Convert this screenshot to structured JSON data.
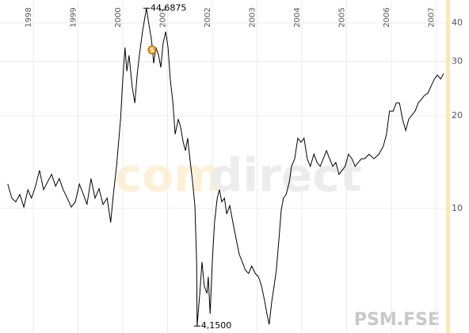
{
  "chart_data": {
    "type": "line",
    "symbol": "PSM.FSE",
    "watermark": {
      "left": "com",
      "right": "direct"
    },
    "event_label": "S",
    "annotations": {
      "max": "44,6875",
      "min": "4,1500"
    },
    "color": "#000000",
    "log_scale": true,
    "grid": true,
    "xlim": [
      1997.257,
      2007.221
    ],
    "xticks": [
      1998,
      1999,
      2000,
      2001,
      2002,
      2003,
      2004,
      2005,
      2006,
      2007
    ],
    "ylim": [
      3.94,
      47.5
    ],
    "yticks": [
      10,
      20,
      30,
      40
    ],
    "x": [
      1997.43,
      1997.52,
      1997.61,
      1997.7,
      1997.79,
      1997.88,
      1997.96,
      1998.05,
      1998.14,
      1998.23,
      1998.32,
      1998.41,
      1998.5,
      1998.58,
      1998.67,
      1998.76,
      1998.85,
      1998.94,
      1999.03,
      1999.12,
      1999.2,
      1999.29,
      1999.38,
      1999.47,
      1999.56,
      1999.65,
      1999.73,
      1999.79,
      1999.86,
      1999.95,
      2000.0,
      2000.05,
      2000.09,
      2000.14,
      2000.21,
      2000.27,
      2000.32,
      2000.37,
      2000.44,
      2000.5,
      2000.53,
      2000.58,
      2000.64,
      2000.69,
      2000.74,
      2000.8,
      2000.85,
      2000.9,
      2000.96,
      2001.01,
      2001.06,
      2001.12,
      2001.17,
      2001.24,
      2001.29,
      2001.35,
      2001.4,
      2001.45,
      2001.5,
      2001.56,
      2001.61,
      2001.65,
      2001.66,
      2001.72,
      2001.77,
      2001.82,
      2001.88,
      2001.91,
      2001.95,
      2002.0,
      2002.05,
      2002.11,
      2002.16,
      2002.21,
      2002.27,
      2002.32,
      2002.39,
      2002.46,
      2002.53,
      2002.6,
      2002.67,
      2002.74,
      2002.81,
      2002.88,
      2002.96,
      2003.03,
      2003.1,
      2003.17,
      2003.22,
      2003.27,
      2003.33,
      2003.38,
      2003.43,
      2003.49,
      2003.54,
      2003.59,
      2003.65,
      2003.72,
      2003.77,
      2003.84,
      2003.91,
      2003.98,
      2004.05,
      2004.12,
      2004.19,
      2004.27,
      2004.34,
      2004.41,
      2004.48,
      2004.55,
      2004.62,
      2004.69,
      2004.76,
      2004.83,
      2004.9,
      2004.97,
      2005.04,
      2005.12,
      2005.19,
      2005.26,
      2005.33,
      2005.4,
      2005.5,
      2005.61,
      2005.72,
      2005.82,
      2005.89,
      2005.96,
      2006.04,
      2006.11,
      2006.18,
      2006.25,
      2006.32,
      2006.39,
      2006.46,
      2006.53,
      2006.6,
      2006.67,
      2006.74,
      2006.81,
      2006.88,
      2006.96,
      2007.03,
      2007.1,
      2007.17
    ],
    "values": [
      12.0,
      10.8,
      10.5,
      11.1,
      10.1,
      11.5,
      10.8,
      11.8,
      13.3,
      11.5,
      12.2,
      12.9,
      11.8,
      12.5,
      11.5,
      10.8,
      10.1,
      10.5,
      12.0,
      11.1,
      10.3,
      12.5,
      10.8,
      11.6,
      10.3,
      10.8,
      9.0,
      11.1,
      13.7,
      19.5,
      26.3,
      33.3,
      27.9,
      31.4,
      24.8,
      22.0,
      27.1,
      31.4,
      37.5,
      42.2,
      44.6875,
      39.8,
      35.3,
      29.6,
      33.3,
      31.4,
      28.7,
      34.3,
      37.5,
      33.3,
      26.3,
      22.0,
      17.4,
      19.5,
      18.4,
      16.4,
      15.4,
      16.9,
      14.5,
      12.2,
      10.2,
      6.7,
      4.15,
      5.3,
      6.7,
      5.6,
      5.3,
      6.0,
      4.55,
      6.7,
      9.0,
      10.8,
      11.5,
      10.5,
      10.8,
      9.6,
      10.2,
      9.0,
      8.0,
      7.1,
      6.7,
      6.3,
      6.15,
      6.5,
      6.15,
      6.0,
      5.6,
      5.0,
      4.55,
      4.2,
      5.0,
      5.6,
      6.3,
      8.0,
      9.9,
      10.8,
      11.1,
      12.2,
      13.7,
      14.5,
      16.9,
      16.4,
      16.9,
      14.5,
      13.7,
      15.0,
      14.1,
      13.7,
      14.5,
      15.4,
      14.5,
      13.7,
      14.1,
      12.9,
      13.3,
      13.7,
      15.0,
      14.5,
      13.7,
      14.1,
      14.5,
      14.5,
      15.0,
      14.5,
      15.0,
      15.9,
      17.4,
      20.7,
      20.7,
      22.0,
      22.0,
      19.5,
      17.9,
      19.5,
      20.1,
      20.7,
      22.0,
      22.6,
      23.3,
      23.6,
      24.8,
      26.3,
      27.1,
      26.3,
      27.4
    ]
  }
}
